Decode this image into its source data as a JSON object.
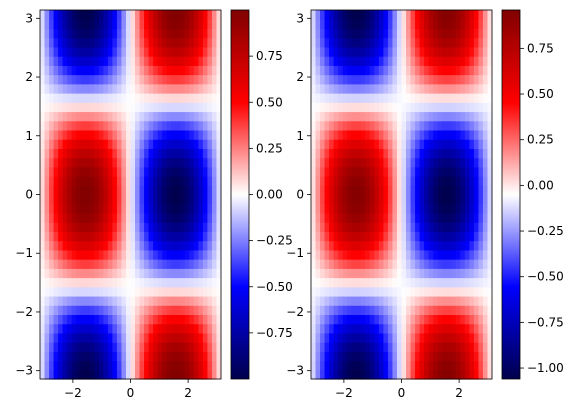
{
  "figure": {
    "background": "#ffffff",
    "colormap": "seismic",
    "colormap_stops": [
      "#00004c",
      "#0000ff",
      "#ffffff",
      "#ff0000",
      "#800000"
    ]
  },
  "chart_data": [
    {
      "type": "heatmap",
      "function": "-sin(x)*cos(y)",
      "x_range": [
        -3.14159,
        3.14159
      ],
      "y_range": [
        -3.14159,
        3.14159
      ],
      "grid": false,
      "xticks": [
        {
          "value": -2,
          "label": "−2"
        },
        {
          "value": 0,
          "label": "0"
        },
        {
          "value": 2,
          "label": "2"
        }
      ],
      "yticks": [
        {
          "value": -3,
          "label": "−3"
        },
        {
          "value": -2,
          "label": "−2"
        },
        {
          "value": -1,
          "label": "−1"
        },
        {
          "value": 0,
          "label": "0"
        },
        {
          "value": 1,
          "label": "1"
        },
        {
          "value": 2,
          "label": "2"
        },
        {
          "value": 3,
          "label": "3"
        }
      ],
      "colorbar": {
        "vmin": -1.0,
        "vmax": 1.0,
        "ticks": [
          {
            "value": -0.75,
            "label": "−0.75"
          },
          {
            "value": -0.5,
            "label": "−0.50"
          },
          {
            "value": -0.25,
            "label": "−0.25"
          },
          {
            "value": 0.0,
            "label": "0.00"
          },
          {
            "value": 0.25,
            "label": "0.25"
          },
          {
            "value": 0.5,
            "label": "0.50"
          },
          {
            "value": 0.75,
            "label": "0.75"
          }
        ]
      }
    },
    {
      "type": "heatmap",
      "function": "-sin(x)*cos(y), shifted by -0.06",
      "x_range": [
        -3.14159,
        3.14159
      ],
      "y_range": [
        -3.14159,
        3.14159
      ],
      "grid": false,
      "xticks": [
        {
          "value": -2,
          "label": "−2"
        },
        {
          "value": 0,
          "label": "0"
        },
        {
          "value": 2,
          "label": "2"
        }
      ],
      "yticks": [
        {
          "value": -3,
          "label": "−3"
        },
        {
          "value": -2,
          "label": "−2"
        },
        {
          "value": -1,
          "label": "−1"
        },
        {
          "value": 0,
          "label": "0"
        },
        {
          "value": 1,
          "label": "1"
        },
        {
          "value": 2,
          "label": "2"
        },
        {
          "value": 3,
          "label": "3"
        }
      ],
      "colorbar": {
        "vmin": -1.06,
        "vmax": 0.96,
        "ticks": [
          {
            "value": -1.0,
            "label": "−1.00"
          },
          {
            "value": -0.75,
            "label": "−0.75"
          },
          {
            "value": -0.5,
            "label": "−0.50"
          },
          {
            "value": -0.25,
            "label": "−0.25"
          },
          {
            "value": 0.0,
            "label": "0.00"
          },
          {
            "value": 0.25,
            "label": "0.25"
          },
          {
            "value": 0.5,
            "label": "0.50"
          },
          {
            "value": 0.75,
            "label": "0.75"
          }
        ]
      }
    }
  ]
}
